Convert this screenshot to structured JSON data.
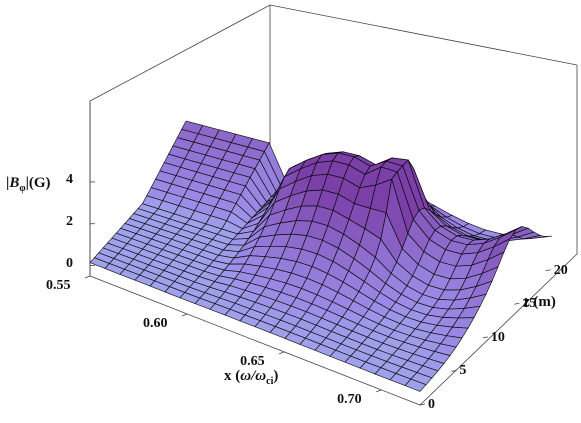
{
  "chart_data": {
    "type": "surface3d",
    "axes": {
      "x": {
        "label_prefix": "x (",
        "label_math_main": "ω/ω",
        "label_math_sub": "ci",
        "label_suffix": ")",
        "range": [
          0.55,
          0.72
        ],
        "ticks": [
          "0.55",
          "0.60",
          "0.65",
          "0.70"
        ]
      },
      "z": {
        "label": "z (m)",
        "range": [
          0,
          21
        ],
        "ticks": [
          "0",
          "5",
          "10",
          "15",
          "20"
        ]
      },
      "y": {
        "label_pre": "|",
        "label_main": "B",
        "label_sub": "φ",
        "label_post": "|(G)",
        "range": [
          -0.5,
          5
        ],
        "ticks": [
          "0",
          "2",
          "4"
        ]
      }
    },
    "surface_description_values": {
      "baseline_G": 0.2,
      "ridge_peak_G": 4.5,
      "ridge_x_start": 0.6,
      "back_wall_x_end": 0.595,
      "back_wall_height_G": 1.8,
      "spike_x": 0.664,
      "spike_height_G": 4.8
    },
    "colors": {
      "surface_low": "#a9d6f5",
      "surface_mid": "#9b8be6",
      "surface_high": "#7b3fa8",
      "mesh": "#000000",
      "box": "#444444"
    }
  }
}
